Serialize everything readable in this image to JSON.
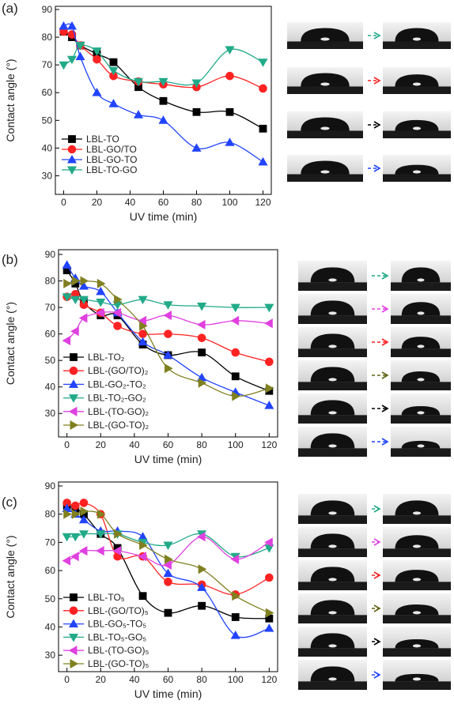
{
  "chart_data": [
    {
      "type": "line",
      "panel_label": "(a)",
      "xlabel": "UV time (min)",
      "ylabel": "Contact angle (°)",
      "x": [
        0,
        5,
        10,
        20,
        30,
        45,
        60,
        80,
        100,
        120
      ],
      "xlim": [
        -5,
        125
      ],
      "xticks": [
        0,
        20,
        40,
        60,
        80,
        100,
        120
      ],
      "ylim": [
        25,
        90
      ],
      "yticks": [
        30,
        40,
        50,
        60,
        70,
        80,
        90
      ],
      "series": [
        {
          "name": "LBL-TO",
          "color": "#000000",
          "marker": "square",
          "values": [
            82,
            80,
            77,
            74,
            71,
            62,
            57,
            53,
            53,
            47
          ]
        },
        {
          "name": "LBL-GO/TO",
          "color": "#ff2222",
          "marker": "circle",
          "values": [
            82,
            81,
            77,
            72,
            66,
            64,
            63,
            62,
            66,
            61.5
          ]
        },
        {
          "name": "LBL-GO-TO",
          "color": "#2244ff",
          "marker": "triangle-up",
          "values": [
            84,
            84,
            73,
            60,
            56,
            52,
            50,
            40,
            42,
            35
          ]
        },
        {
          "name": "LBL-TO-GO",
          "color": "#22aa88",
          "marker": "triangle-down",
          "values": [
            70,
            72,
            77,
            75,
            68,
            64,
            64,
            63.5,
            75.5,
            71
          ]
        }
      ]
    },
    {
      "type": "line",
      "panel_label": "(b)",
      "xlabel": "UV time (min)",
      "ylabel": "Contact angle (°)",
      "x": [
        0,
        5,
        10,
        20,
        30,
        45,
        60,
        80,
        100,
        120
      ],
      "xlim": [
        -5,
        125
      ],
      "xticks": [
        0,
        20,
        40,
        60,
        80,
        100,
        120
      ],
      "ylim": [
        25,
        90
      ],
      "yticks": [
        30,
        40,
        50,
        60,
        70,
        80,
        90
      ],
      "series": [
        {
          "name": "LBL-TO₂",
          "color": "#000000",
          "marker": "square",
          "values": [
            84,
            79,
            72,
            67,
            67,
            56,
            52,
            53,
            44,
            38.5
          ]
        },
        {
          "name": "LBL-(GO/TO)₂",
          "color": "#ff2222",
          "marker": "circle",
          "values": [
            74,
            75,
            71,
            68,
            63,
            60,
            60,
            58.5,
            53,
            49.5
          ]
        },
        {
          "name": "LBL-GO₂-TO₂",
          "color": "#2244ff",
          "marker": "triangle-up",
          "values": [
            86,
            81,
            78,
            76,
            68,
            57,
            52,
            43.5,
            38,
            33
          ]
        },
        {
          "name": "LBL-TO₂-GO₂",
          "color": "#22aa88",
          "marker": "triangle-down",
          "values": [
            74,
            73,
            73,
            72,
            71,
            73,
            71,
            70.5,
            70,
            70
          ]
        },
        {
          "name": "LBL-(TO-GO)₂",
          "color": "#e040e0",
          "marker": "triangle-left",
          "values": [
            57.5,
            61,
            66,
            68,
            68,
            65,
            67,
            63.5,
            65,
            64
          ]
        },
        {
          "name": "LBL-(GO-TO)₂",
          "color": "#808020",
          "marker": "triangle-right",
          "values": [
            79,
            80,
            80,
            79,
            73,
            63,
            47,
            41.5,
            36.5,
            39.5
          ]
        }
      ]
    },
    {
      "type": "line",
      "panel_label": "(c)",
      "xlabel": "UV time (min)",
      "ylabel": "Contact angle (°)",
      "x": [
        0,
        5,
        10,
        20,
        30,
        45,
        60,
        80,
        100,
        120
      ],
      "xlim": [
        -5,
        125
      ],
      "xticks": [
        0,
        20,
        40,
        60,
        80,
        100,
        120
      ],
      "ylim": [
        25,
        90
      ],
      "yticks": [
        30,
        40,
        50,
        60,
        70,
        80,
        90
      ],
      "series": [
        {
          "name": "LBL-TO₅",
          "color": "#000000",
          "marker": "square",
          "values": [
            83,
            82,
            80,
            73,
            68,
            51,
            45,
            47.5,
            43.5,
            43
          ]
        },
        {
          "name": "LBL-(GO/TO)₅",
          "color": "#ff2222",
          "marker": "circle",
          "values": [
            84,
            83,
            84,
            80,
            65,
            65,
            56,
            55,
            51.5,
            57.5
          ]
        },
        {
          "name": "LBL-GO₅-TO₅",
          "color": "#2244ff",
          "marker": "triangle-up",
          "values": [
            82,
            80,
            78,
            74,
            74,
            72,
            59,
            54,
            37,
            39.5
          ]
        },
        {
          "name": "LBL-TO₅-GO₅",
          "color": "#22aa88",
          "marker": "triangle-down",
          "values": [
            72,
            72,
            73,
            73,
            73,
            70,
            69,
            73,
            65,
            68
          ]
        },
        {
          "name": "LBL-(TO-GO)₅",
          "color": "#e040e0",
          "marker": "triangle-left",
          "values": [
            63.5,
            65,
            67,
            67,
            67,
            65,
            62,
            72,
            64,
            70
          ]
        },
        {
          "name": "LBL-(GO-TO)₅",
          "color": "#808020",
          "marker": "triangle-right",
          "values": [
            80,
            80,
            81,
            80,
            73,
            69,
            64,
            60.5,
            51,
            45
          ]
        }
      ]
    }
  ]
}
